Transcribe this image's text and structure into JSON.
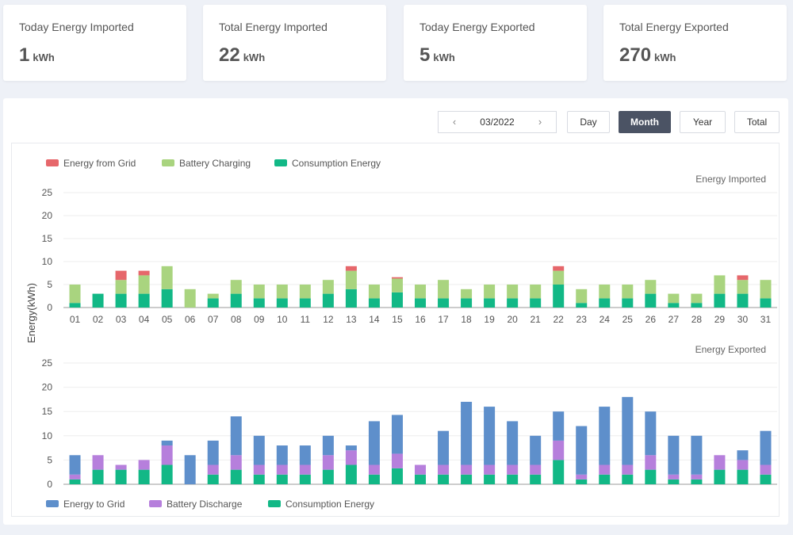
{
  "cards": [
    {
      "label": "Today Energy Imported",
      "value": "1",
      "unit": "kWh"
    },
    {
      "label": "Total Energy Imported",
      "value": "22",
      "unit": "kWh"
    },
    {
      "label": "Today Energy Exported",
      "value": "5",
      "unit": "kWh"
    },
    {
      "label": "Total Energy Exported",
      "value": "270",
      "unit": "kWh"
    }
  ],
  "date_picker": {
    "value": "03/2022",
    "prev_icon": "chevron-left-icon",
    "next_icon": "chevron-right-icon"
  },
  "period_buttons": {
    "day": "Day",
    "month": "Month",
    "year": "Year",
    "total": "Total",
    "active": "Month"
  },
  "colors": {
    "grid": "#e6676b",
    "battery_charging": "#a9d47f",
    "consumption": "#12b886",
    "energy_to_grid": "#5e8fcb",
    "battery_discharge": "#b67fdc",
    "active_button": "#4b5364"
  },
  "chart_data": [
    {
      "type": "bar",
      "stacked": true,
      "subtitle": "Energy Imported",
      "ylabel": "Energy(kWh)",
      "ylim": [
        0,
        25
      ],
      "yticks": [
        0,
        5,
        10,
        15,
        20,
        25
      ],
      "grid": true,
      "legend_position": "top-left",
      "categories": [
        "01",
        "02",
        "03",
        "04",
        "05",
        "06",
        "07",
        "08",
        "09",
        "10",
        "11",
        "12",
        "13",
        "14",
        "15",
        "16",
        "17",
        "18",
        "19",
        "20",
        "21",
        "22",
        "23",
        "24",
        "25",
        "26",
        "27",
        "28",
        "29",
        "30",
        "31"
      ],
      "series": [
        {
          "name": "Consumption Energy",
          "color": "#12b886",
          "values": [
            1,
            3,
            3,
            3,
            4,
            0,
            2,
            3,
            2,
            2,
            2,
            3,
            4,
            2,
            3.3,
            2,
            2,
            2,
            2,
            2,
            2,
            5,
            1,
            2,
            2,
            3,
            1,
            1,
            3,
            3,
            2
          ]
        },
        {
          "name": "Battery Charging",
          "color": "#a9d47f",
          "values": [
            4,
            0,
            3,
            4,
            5,
            4,
            1,
            3,
            3,
            3,
            3,
            3,
            4,
            3,
            3,
            3,
            4,
            2,
            3,
            3,
            3,
            3,
            3,
            3,
            3,
            3,
            2,
            2,
            4,
            3,
            4
          ]
        },
        {
          "name": "Energy from Grid",
          "color": "#e6676b",
          "values": [
            0,
            0,
            2,
            1,
            0,
            0,
            0,
            0,
            0,
            0,
            0,
            0,
            1,
            0,
            0.3,
            0,
            0,
            0,
            0,
            0,
            0,
            1,
            0,
            0,
            0,
            0,
            0,
            0,
            0,
            1,
            0
          ]
        }
      ],
      "legend_order": [
        "Energy from Grid",
        "Battery Charging",
        "Consumption Energy"
      ]
    },
    {
      "type": "bar",
      "stacked": true,
      "subtitle": "Energy Exported",
      "ylim": [
        0,
        25
      ],
      "yticks": [
        0,
        5,
        10,
        15,
        20,
        25
      ],
      "grid": true,
      "legend_position": "bottom-left",
      "categories": [
        "01",
        "02",
        "03",
        "04",
        "05",
        "06",
        "07",
        "08",
        "09",
        "10",
        "11",
        "12",
        "13",
        "14",
        "15",
        "16",
        "17",
        "18",
        "19",
        "20",
        "21",
        "22",
        "23",
        "24",
        "25",
        "26",
        "27",
        "28",
        "29",
        "30",
        "31"
      ],
      "series": [
        {
          "name": "Consumption Energy",
          "color": "#12b886",
          "values": [
            1,
            3,
            3,
            3,
            4,
            0,
            2,
            3,
            2,
            2,
            2,
            3,
            4,
            2,
            3.3,
            2,
            2,
            2,
            2,
            2,
            2,
            5,
            1,
            2,
            2,
            3,
            1,
            1,
            3,
            3,
            2
          ]
        },
        {
          "name": "Battery Discharge",
          "color": "#b67fdc",
          "values": [
            1,
            3,
            1,
            2,
            4,
            0,
            2,
            3,
            2,
            2,
            2,
            3,
            3,
            2,
            3,
            2,
            2,
            2,
            2,
            2,
            2,
            4,
            1,
            2,
            2,
            3,
            1,
            1,
            3,
            2,
            2
          ]
        },
        {
          "name": "Energy to Grid",
          "color": "#5e8fcb",
          "values": [
            4,
            0,
            0,
            0,
            1,
            6,
            5,
            8,
            6,
            4,
            4,
            4,
            1,
            9,
            8,
            0,
            7,
            13,
            12,
            9,
            6,
            6,
            10,
            12,
            14,
            9,
            8,
            8,
            0,
            2,
            7
          ]
        }
      ],
      "legend_order": [
        "Energy to Grid",
        "Battery Discharge",
        "Consumption Energy"
      ]
    }
  ]
}
